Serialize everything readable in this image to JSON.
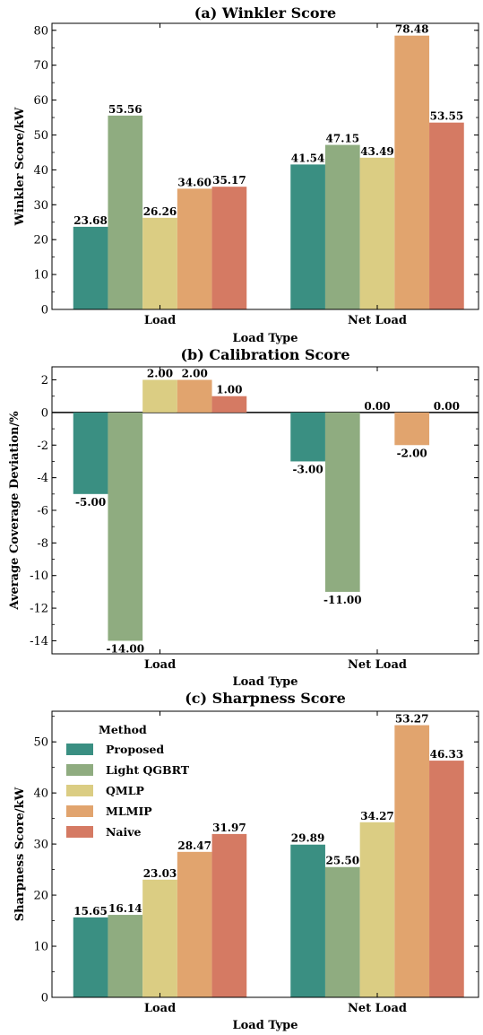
{
  "chart_data": [
    {
      "type": "bar",
      "title": "(a) Winkler Score",
      "xlabel": "Load Type",
      "ylabel": "Winkler Score/kW",
      "categories": [
        "Load",
        "Net Load"
      ],
      "ylim": [
        0,
        82
      ],
      "yticks": [
        0,
        10,
        20,
        30,
        40,
        50,
        60,
        70,
        80
      ],
      "series": [
        {
          "name": "Proposed",
          "values": [
            23.68,
            41.54
          ],
          "labels": [
            "23.68",
            "41.54"
          ]
        },
        {
          "name": "Light QGBRT",
          "values": [
            55.56,
            47.15
          ],
          "labels": [
            "55.56",
            "47.15"
          ]
        },
        {
          "name": "QMLP",
          "values": [
            26.26,
            43.49
          ],
          "labels": [
            "26.26",
            "43.49"
          ]
        },
        {
          "name": "MLMIP",
          "values": [
            34.6,
            78.48
          ],
          "labels": [
            "34.60",
            "78.48"
          ]
        },
        {
          "name": "Naive",
          "values": [
            35.17,
            53.55
          ],
          "labels": [
            "35.17",
            "53.55"
          ]
        }
      ]
    },
    {
      "type": "bar",
      "title": "(b) Calibration Score",
      "xlabel": "Load Type",
      "ylabel": "Average Coverage Deviation/%",
      "categories": [
        "Load",
        "Net Load"
      ],
      "ylim": [
        -14.8,
        2.8
      ],
      "yticks": [
        -14,
        -12,
        -10,
        -8,
        -6,
        -4,
        -2,
        0,
        2
      ],
      "zero_line": true,
      "series": [
        {
          "name": "Proposed",
          "values": [
            -5.0,
            -3.0
          ],
          "labels": [
            "-5.00",
            "-3.00"
          ]
        },
        {
          "name": "Light QGBRT",
          "values": [
            -14.0,
            -11.0
          ],
          "labels": [
            "-14.00",
            "-11.00"
          ]
        },
        {
          "name": "QMLP",
          "values": [
            2.0,
            0.0
          ],
          "labels": [
            "2.00",
            "0.00"
          ]
        },
        {
          "name": "MLMIP",
          "values": [
            2.0,
            -2.0
          ],
          "labels": [
            "2.00",
            "-2.00"
          ]
        },
        {
          "name": "Naive",
          "values": [
            1.0,
            0.0
          ],
          "labels": [
            "1.00",
            "0.00"
          ]
        }
      ]
    },
    {
      "type": "bar",
      "title": "(c) Sharpness Score",
      "xlabel": "Load Type",
      "ylabel": "Sharpness Score/kW",
      "categories": [
        "Load",
        "Net Load"
      ],
      "ylim": [
        0,
        56
      ],
      "yticks": [
        0,
        10,
        20,
        30,
        40,
        50
      ],
      "legend": {
        "title": "Method",
        "placement": "top-left"
      },
      "series": [
        {
          "name": "Proposed",
          "values": [
            15.65,
            29.89
          ],
          "labels": [
            "15.65",
            "29.89"
          ]
        },
        {
          "name": "Light QGBRT",
          "values": [
            16.14,
            25.5
          ],
          "labels": [
            "16.14",
            "25.50"
          ]
        },
        {
          "name": "QMLP",
          "values": [
            23.03,
            34.27
          ],
          "labels": [
            "23.03",
            "34.27"
          ]
        },
        {
          "name": "MLMIP",
          "values": [
            28.47,
            53.27
          ],
          "labels": [
            "28.47",
            "53.27"
          ]
        },
        {
          "name": "Naive",
          "values": [
            31.97,
            46.33
          ],
          "labels": [
            "31.97",
            "46.33"
          ]
        }
      ]
    }
  ],
  "colors": {
    "Proposed": "#3a8f82",
    "Light QGBRT": "#8fac80",
    "QMLP": "#dbcd83",
    "MLMIP": "#e1a46e",
    "Naive": "#d57a63"
  }
}
